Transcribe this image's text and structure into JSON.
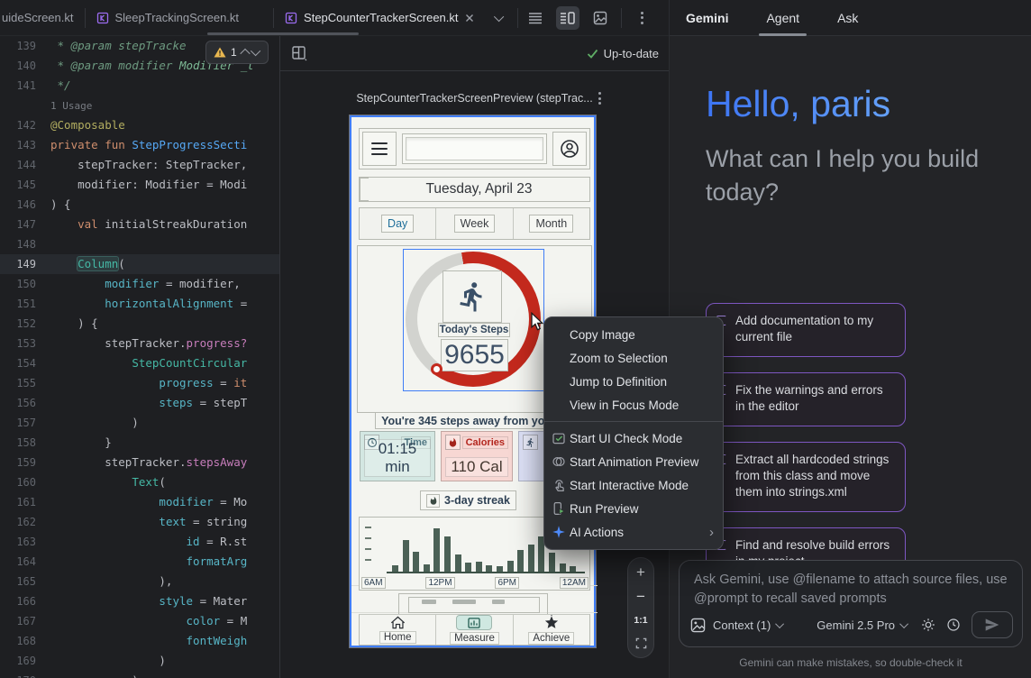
{
  "tabbar": {
    "tabs": [
      {
        "label": "uideScreen.kt"
      },
      {
        "label": "SleepTrackingScreen.kt"
      },
      {
        "label": "StepCounterTrackerScreen.kt"
      }
    ]
  },
  "editor": {
    "inspection_badge": {
      "count": "1"
    },
    "rows": [
      {
        "num": "139",
        "t": [
          {
            "s": " * @param stepTracke",
            "c": "cmt"
          }
        ]
      },
      {
        "num": "140",
        "t": [
          {
            "s": " * @param modifier ",
            "c": "cmt"
          },
          {
            "s": "Modifier _t",
            "c": "cty"
          }
        ]
      },
      {
        "num": "141",
        "t": [
          {
            "s": " */",
            "c": "cmt"
          }
        ]
      },
      {
        "num": "",
        "t": [
          {
            "s": "1 Usage",
            "c": "usage"
          }
        ]
      },
      {
        "num": "142",
        "t": [
          {
            "s": "@Composable",
            "c": "ann"
          }
        ]
      },
      {
        "num": "143",
        "t": [
          {
            "s": "private fun ",
            "c": "kw"
          },
          {
            "s": "StepProgressSecti",
            "c": "fn"
          }
        ]
      },
      {
        "num": "144",
        "t": [
          {
            "s": "    stepTracker: StepTracker,",
            "c": "txt"
          }
        ]
      },
      {
        "num": "145",
        "t": [
          {
            "s": "    modifier: Modifier = Modi",
            "c": "txt"
          }
        ]
      },
      {
        "num": "146",
        "t": [
          {
            "s": ") {",
            "c": "txt"
          }
        ]
      },
      {
        "num": "147",
        "t": [
          {
            "s": "    ",
            "c": "txt"
          },
          {
            "s": "val ",
            "c": "kw"
          },
          {
            "s": "initialStreakDuration",
            "c": "txt"
          }
        ]
      },
      {
        "num": "148",
        "t": []
      },
      {
        "num": "149",
        "cur": true,
        "t": [
          {
            "s": "    ",
            "c": "txt"
          },
          {
            "s": "Column",
            "c": "comphl"
          },
          {
            "s": "(",
            "c": "txt"
          }
        ]
      },
      {
        "num": "150",
        "t": [
          {
            "s": "        ",
            "c": "txt"
          },
          {
            "s": "modifier",
            "c": "named"
          },
          {
            "s": " = modifier,",
            "c": "txt"
          }
        ]
      },
      {
        "num": "151",
        "t": [
          {
            "s": "        ",
            "c": "txt"
          },
          {
            "s": "horizontalAlignment",
            "c": "named"
          },
          {
            "s": " =",
            "c": "txt"
          }
        ]
      },
      {
        "num": "152",
        "t": [
          {
            "s": "    ) {",
            "c": "txt"
          }
        ]
      },
      {
        "num": "153",
        "t": [
          {
            "s": "        stepTracker.",
            "c": "txt"
          },
          {
            "s": "progress?",
            "c": "prop"
          }
        ]
      },
      {
        "num": "154",
        "t": [
          {
            "s": "            ",
            "c": "txt"
          },
          {
            "s": "StepCountCircular",
            "c": "comp"
          }
        ]
      },
      {
        "num": "155",
        "t": [
          {
            "s": "                ",
            "c": "txt"
          },
          {
            "s": "progress",
            "c": "named"
          },
          {
            "s": " = ",
            "c": "txt"
          },
          {
            "s": "it",
            "c": "kw"
          }
        ]
      },
      {
        "num": "156",
        "t": [
          {
            "s": "                ",
            "c": "txt"
          },
          {
            "s": "steps",
            "c": "named"
          },
          {
            "s": " = stepT",
            "c": "txt"
          }
        ]
      },
      {
        "num": "157",
        "t": [
          {
            "s": "            )",
            "c": "txt"
          }
        ]
      },
      {
        "num": "158",
        "t": [
          {
            "s": "        }",
            "c": "txt"
          }
        ]
      },
      {
        "num": "159",
        "t": [
          {
            "s": "        stepTracker.",
            "c": "txt"
          },
          {
            "s": "stepsAway",
            "c": "prop"
          }
        ]
      },
      {
        "num": "160",
        "t": [
          {
            "s": "            ",
            "c": "txt"
          },
          {
            "s": "Text",
            "c": "comp"
          },
          {
            "s": "(",
            "c": "txt"
          }
        ]
      },
      {
        "num": "161",
        "t": [
          {
            "s": "                ",
            "c": "txt"
          },
          {
            "s": "modifier",
            "c": "named"
          },
          {
            "s": " = Mo",
            "c": "txt"
          }
        ]
      },
      {
        "num": "162",
        "t": [
          {
            "s": "                ",
            "c": "txt"
          },
          {
            "s": "text",
            "c": "named"
          },
          {
            "s": " = string",
            "c": "txt"
          }
        ]
      },
      {
        "num": "163",
        "t": [
          {
            "s": "                    ",
            "c": "txt"
          },
          {
            "s": "id",
            "c": "named"
          },
          {
            "s": " = R.st",
            "c": "txt"
          }
        ]
      },
      {
        "num": "164",
        "t": [
          {
            "s": "                    ",
            "c": "txt"
          },
          {
            "s": "formatArg",
            "c": "named"
          }
        ]
      },
      {
        "num": "165",
        "t": [
          {
            "s": "                ),",
            "c": "txt"
          }
        ]
      },
      {
        "num": "166",
        "t": [
          {
            "s": "                ",
            "c": "txt"
          },
          {
            "s": "style",
            "c": "named"
          },
          {
            "s": " = Mater",
            "c": "txt"
          }
        ]
      },
      {
        "num": "167",
        "t": [
          {
            "s": "                    ",
            "c": "txt"
          },
          {
            "s": "color",
            "c": "named"
          },
          {
            "s": " = M",
            "c": "txt"
          }
        ]
      },
      {
        "num": "168",
        "t": [
          {
            "s": "                    ",
            "c": "txt"
          },
          {
            "s": "fontWeigh",
            "c": "named"
          }
        ]
      },
      {
        "num": "169",
        "t": [
          {
            "s": "                )",
            "c": "txt"
          }
        ]
      },
      {
        "num": "170",
        "t": [
          {
            "s": "            )",
            "c": "txt"
          }
        ]
      }
    ]
  },
  "preview": {
    "toolbar": {
      "status": "Up-to-date"
    },
    "title": "StepCounterTrackerScreenPreview (stepTrac...",
    "zoom_controls": {
      "actual": "1:1"
    },
    "phone": {
      "date": "Tuesday, April 23",
      "tabs": [
        "Day",
        "Week",
        "Month"
      ],
      "steps_label": "Today's Steps",
      "steps_value": "9655",
      "away_text": "You're 345 steps away from your",
      "stats": [
        {
          "label": "Time",
          "value": "01:15 min"
        },
        {
          "label": "Calories",
          "value": "110 Cal"
        },
        {
          "label": "",
          "value": ""
        }
      ],
      "streak": "3-day streak",
      "chart": {
        "type": "bar",
        "bars": [
          0.15,
          0.72,
          0.46,
          0.16,
          1.0,
          0.82,
          0.4,
          0.2,
          0.22,
          0.15,
          0.12,
          0.24,
          0.5,
          0.63,
          0.82,
          0.43,
          0.18,
          0.13
        ],
        "x_labels": [
          "6AM",
          "12PM",
          "6PM",
          "12AM"
        ]
      },
      "nav": [
        {
          "label": "Home"
        },
        {
          "label": "Measure"
        },
        {
          "label": "Achieve"
        }
      ]
    }
  },
  "context_menu": {
    "items": [
      {
        "label": "Copy Image"
      },
      {
        "label": "Zoom to Selection"
      },
      {
        "label": "Jump to Definition"
      },
      {
        "label": "View in Focus Mode"
      },
      {
        "divider": true
      },
      {
        "label": "Start UI Check Mode",
        "icon": "ui-check"
      },
      {
        "label": "Start Animation Preview",
        "icon": "animation"
      },
      {
        "label": "Start Interactive Mode",
        "icon": "interactive"
      },
      {
        "label": "Run Preview",
        "icon": "run"
      },
      {
        "label": "AI Actions",
        "icon": "ai",
        "submenu": true
      }
    ]
  },
  "gemini": {
    "panel_title": "Gemini",
    "tabs": [
      {
        "label": "Agent",
        "active": true
      },
      {
        "label": "Ask"
      }
    ],
    "greeting": "Hello, paris",
    "subtitle": "What can I help you build today?",
    "chips": [
      "Add documentation to my current file",
      "Fix the warnings and errors in the editor",
      "Extract all hardcoded strings from this class and move them into strings.xml",
      "Find and resolve build errors in my project"
    ],
    "input_placeholder": "Ask Gemini, use @filename to attach source files, use @prompt to recall saved prompts",
    "context_label": "Context (1)",
    "model_label": "Gemini 2.5 Pro",
    "disclaimer": "Gemini can make mistakes, so double-check it"
  },
  "colors": {
    "accent_blue": "#3F7DF6",
    "gemini_blue": "#4C86F8",
    "red_arc": "#C3291D",
    "chip_border": "#7E57C2",
    "bar_color": "#4B6156"
  }
}
